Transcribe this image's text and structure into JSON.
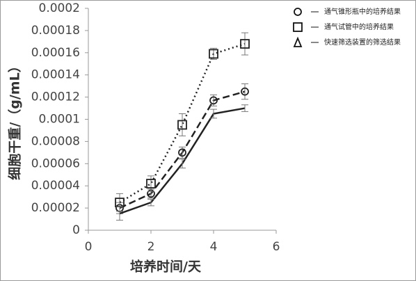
{
  "chart_data": {
    "type": "line",
    "xlabel": "培养时间/天",
    "ylabel": "细胞干重/（g/mL）",
    "x": [
      1,
      2,
      3,
      4,
      5
    ],
    "xlim": [
      0,
      6
    ],
    "xticks": [
      0,
      2,
      4,
      6
    ],
    "ylim": [
      0,
      0.0002
    ],
    "yticks": [
      0,
      2e-05,
      4e-05,
      6e-05,
      8e-05,
      0.0001,
      0.00012,
      0.00014,
      0.00016,
      0.00018,
      0.0002
    ],
    "series": [
      {
        "name": "通气锥形瓶中的培养结果",
        "color": "#222222",
        "marker": "circle",
        "linestyle": "dashed",
        "values": [
          2e-05,
          3.3e-05,
          7e-05,
          0.000117,
          0.000125
        ],
        "errors": [
          5e-06,
          4e-06,
          5e-06,
          5e-06,
          7e-06
        ]
      },
      {
        "name": "通气试管中的培养结果",
        "color": "#222222",
        "marker": "square",
        "linestyle": "dotted",
        "values": [
          2.5e-05,
          4.2e-05,
          9.5e-05,
          0.000159,
          0.000168
        ],
        "errors": [
          8e-06,
          7e-06,
          1e-05,
          5e-06,
          1e-05
        ]
      },
      {
        "name": "快速筛选装置的筛选结果",
        "color": "#222222",
        "marker": "triangle",
        "linestyle": "solid",
        "values": [
          1.5e-05,
          2.5e-05,
          6e-05,
          0.000105,
          0.00011
        ],
        "errors": [
          6e-06,
          3e-06,
          4e-06,
          4e-06,
          3e-06
        ]
      }
    ]
  }
}
